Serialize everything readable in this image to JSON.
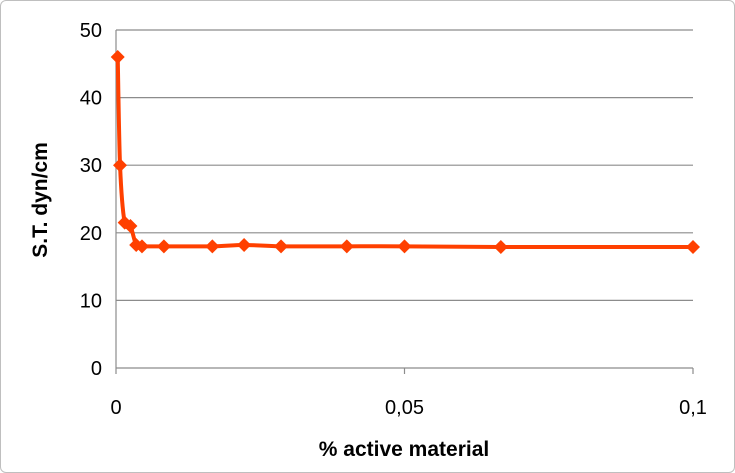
{
  "chart_data": {
    "type": "line",
    "title": "",
    "xlabel": "% active material",
    "ylabel": "S.T. dyn/cm",
    "xlim": [
      0,
      0.1
    ],
    "ylim": [
      0,
      50
    ],
    "grid": true,
    "x_ticks": [
      0,
      0.05,
      0.1
    ],
    "x_tick_labels": [
      "0",
      "0,05",
      "0,1"
    ],
    "y_ticks": [
      0,
      10,
      20,
      30,
      40,
      50
    ],
    "y_tick_labels": [
      "0",
      "10",
      "20",
      "30",
      "40",
      "50"
    ],
    "line_color": "#ff4000",
    "marker_color": "#ff4000",
    "marker": "diamond",
    "series": [
      {
        "x": [
          0.0003,
          0.0007,
          0.0015,
          0.0025,
          0.0035,
          0.0045,
          0.0083,
          0.0167,
          0.0222,
          0.0286,
          0.04,
          0.05,
          0.0667,
          0.1
        ],
        "y": [
          46,
          30,
          21.5,
          21,
          18.2,
          18,
          18,
          18,
          18.2,
          18,
          18,
          18,
          17.9,
          17.9
        ]
      }
    ]
  }
}
